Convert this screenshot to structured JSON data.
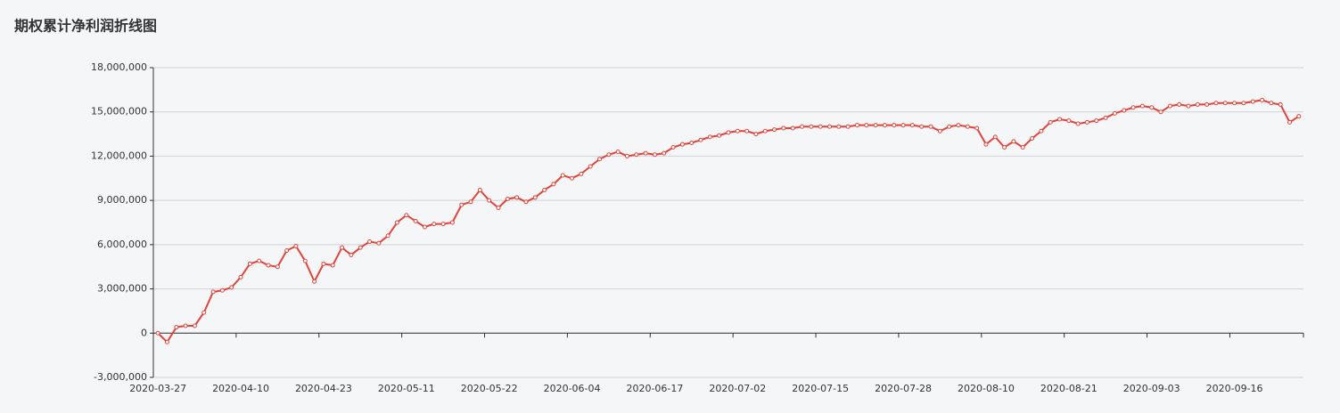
{
  "chart_data": {
    "type": "line",
    "title": "期权累计净利润折线图",
    "categories": [
      "2020-03-27",
      null,
      null,
      null,
      null,
      null,
      null,
      null,
      null,
      "2020-04-10",
      null,
      null,
      null,
      null,
      null,
      null,
      null,
      null,
      "2020-04-23",
      null,
      null,
      null,
      null,
      null,
      null,
      null,
      null,
      "2020-05-11",
      null,
      null,
      null,
      null,
      null,
      null,
      null,
      null,
      "2020-05-22",
      null,
      null,
      null,
      null,
      null,
      null,
      null,
      null,
      "2020-06-04",
      null,
      null,
      null,
      null,
      null,
      null,
      null,
      null,
      "2020-06-17",
      null,
      null,
      null,
      null,
      null,
      null,
      null,
      null,
      "2020-07-02",
      null,
      null,
      null,
      null,
      null,
      null,
      null,
      null,
      "2020-07-15",
      null,
      null,
      null,
      null,
      null,
      null,
      null,
      null,
      "2020-07-28",
      null,
      null,
      null,
      null,
      null,
      null,
      null,
      null,
      "2020-08-10",
      null,
      null,
      null,
      null,
      null,
      null,
      null,
      null,
      "2020-08-21",
      null,
      null,
      null,
      null,
      null,
      null,
      null,
      null,
      "2020-09-03",
      null,
      null,
      null,
      null,
      null,
      null,
      null,
      null,
      "2020-09-16",
      null,
      null,
      null,
      null,
      null,
      null,
      null
    ],
    "series": [
      {
        "color": "#e0443a",
        "values": [
          0,
          -600000,
          400000,
          500000,
          500000,
          1400000,
          2800000,
          2900000,
          3100000,
          3800000,
          4700000,
          4900000,
          4600000,
          4500000,
          5600000,
          5900000,
          4900000,
          3500000,
          4700000,
          4600000,
          5800000,
          5300000,
          5800000,
          6200000,
          6100000,
          6600000,
          7500000,
          8000000,
          7600000,
          7200000,
          7400000,
          7400000,
          7500000,
          8700000,
          8900000,
          9700000,
          9000000,
          8500000,
          9100000,
          9200000,
          8900000,
          9200000,
          9700000,
          10100000,
          10700000,
          10500000,
          10800000,
          11300000,
          11800000,
          12100000,
          12300000,
          12000000,
          12100000,
          12200000,
          12100000,
          12200000,
          12600000,
          12800000,
          12900000,
          13100000,
          13300000,
          13400000,
          13600000,
          13700000,
          13700000,
          13500000,
          13700000,
          13800000,
          13900000,
          13900000,
          14000000,
          14000000,
          14000000,
          14000000,
          14000000,
          14000000,
          14100000,
          14100000,
          14100000,
          14100000,
          14100000,
          14100000,
          14100000,
          14000000,
          14000000,
          13700000,
          14000000,
          14100000,
          14000000,
          13900000,
          12800000,
          13300000,
          12600000,
          13000000,
          12600000,
          13200000,
          13700000,
          14300000,
          14500000,
          14400000,
          14200000,
          14300000,
          14400000,
          14600000,
          14900000,
          15100000,
          15300000,
          15400000,
          15300000,
          15000000,
          15400000,
          15500000,
          15400000,
          15500000,
          15500000,
          15600000,
          15600000,
          15600000,
          15600000,
          15700000,
          15800000,
          15600000,
          15500000,
          14300000,
          14700000
        ]
      }
    ],
    "ylim": [
      -3000000,
      18000000
    ],
    "yticks": [
      {
        "value": -3000000,
        "label": "-3,000,000"
      },
      0,
      {
        "value": 3000000,
        "label": "3,000,000"
      },
      {
        "value": 6000000,
        "label": "6,000,000"
      },
      {
        "value": 9000000,
        "label": "9,000,000"
      },
      {
        "value": 12000000,
        "label": "12,000,000"
      },
      {
        "value": 15000000,
        "label": "15,000,000"
      },
      {
        "value": 18000000,
        "label": "18,000,000"
      }
    ],
    "grid": true
  }
}
